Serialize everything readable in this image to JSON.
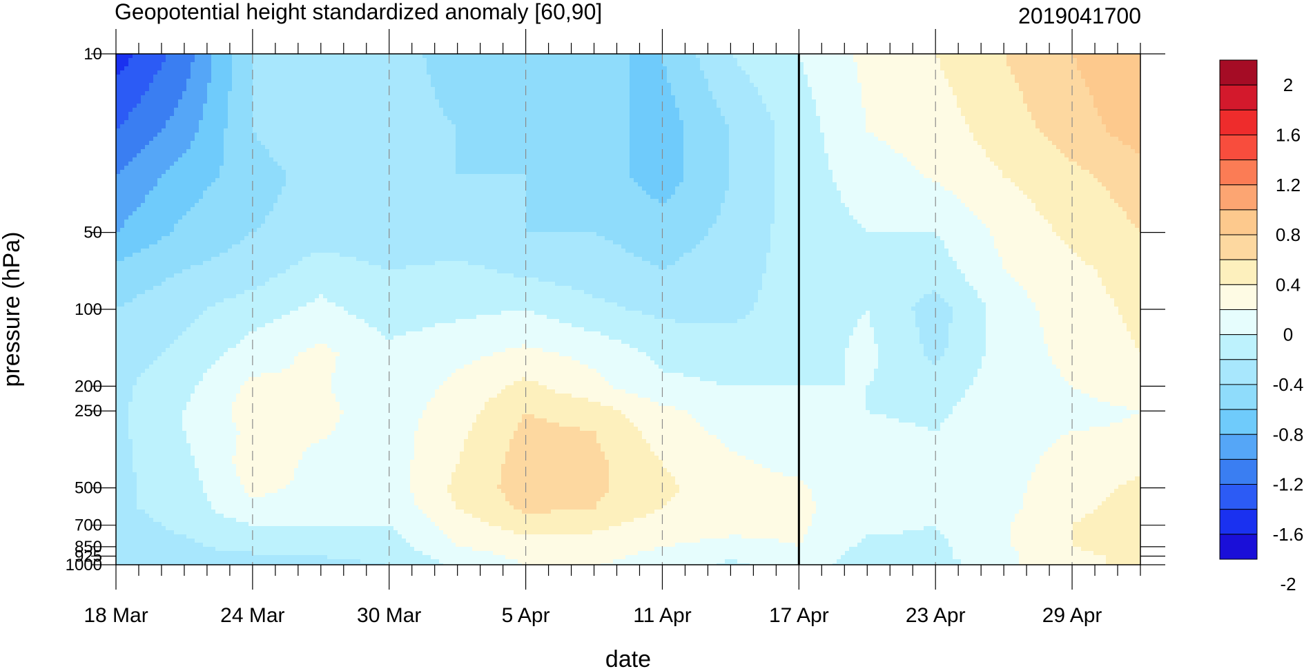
{
  "chart_data": {
    "type": "contour",
    "title": "Geopotential height standardized anomaly [60,90]",
    "subtitle": "2019041700",
    "xlabel": "date",
    "ylabel": "pressure (hPa)",
    "x_tick_labels": [
      "18 Mar",
      "24 Mar",
      "30 Mar",
      "5 Apr",
      "11 Apr",
      "17 Apr",
      "23 Apr",
      "29 Apr"
    ],
    "x_tick_days": [
      0,
      6,
      12,
      18,
      24,
      30,
      36,
      42
    ],
    "x_range_days": [
      0,
      45
    ],
    "y_scale": "log",
    "y_reversed": true,
    "y_range": [
      10,
      1000
    ],
    "y_tick_labels": [
      "10",
      "50",
      "100",
      "200",
      "250",
      "500",
      "700",
      "850",
      "925",
      "1000"
    ],
    "y_tick_values": [
      10,
      50,
      100,
      200,
      250,
      500,
      700,
      850,
      925,
      1000
    ],
    "reference_line_date": "17 Apr",
    "grid": "dashed vertical lines at labeled dates",
    "colorbar": {
      "orientation": "vertical",
      "placement": "right",
      "labels": [
        "2",
        "1.6",
        "1.2",
        "0.8",
        "0.4",
        "0",
        "-0.4",
        "-0.8",
        "-1.2",
        "-1.6",
        "-2"
      ],
      "levels": [
        -2,
        -1.8,
        -1.6,
        -1.4,
        -1.2,
        -1,
        -0.8,
        -0.6,
        -0.4,
        -0.2,
        0,
        0.2,
        0.4,
        0.6,
        0.8,
        1,
        1.2,
        1.4,
        1.6,
        1.8,
        2
      ],
      "colors": [
        "#1a0fd8",
        "#1a31f0",
        "#2c5bf5",
        "#3a7ef2",
        "#55a6f7",
        "#6fcbfb",
        "#8fdcfb",
        "#a8e7fd",
        "#bdf2fd",
        "#e6fdfd",
        "#fefbe4",
        "#fdf0bd",
        "#fdd8a0",
        "#fdc98d",
        "#fca572",
        "#fb7c55",
        "#f84d3d",
        "#ee2c2c",
        "#d3192c",
        "#a50c25"
      ]
    },
    "pressure_levels": [
      10,
      20,
      30,
      50,
      70,
      100,
      150,
      200,
      250,
      300,
      400,
      500,
      600,
      700,
      850,
      925,
      1000
    ],
    "days": [
      0,
      3,
      6,
      9,
      12,
      15,
      18,
      21,
      24,
      27,
      30,
      33,
      36,
      39,
      42,
      45
    ],
    "values": [
      [
        -1.7,
        -1.3,
        -0.6,
        -0.5,
        -0.5,
        -0.7,
        -0.7,
        -0.8,
        -0.8,
        -0.4,
        -0.2,
        0.05,
        0.2,
        0.4,
        0.6,
        0.8
      ],
      [
        -1.4,
        -1.1,
        -0.6,
        -0.4,
        -0.5,
        -0.6,
        -0.7,
        -0.7,
        -0.9,
        -0.6,
        -0.3,
        0.0,
        0.1,
        0.3,
        0.5,
        0.7
      ],
      [
        -1.2,
        -0.9,
        -0.7,
        -0.5,
        -0.5,
        -0.6,
        -0.6,
        -0.7,
        -0.9,
        -0.6,
        -0.3,
        -0.1,
        0.02,
        0.2,
        0.35,
        0.5
      ],
      [
        -1.0,
        -0.75,
        -0.6,
        -0.5,
        -0.55,
        -0.55,
        -0.6,
        -0.6,
        -0.7,
        -0.55,
        -0.3,
        -0.2,
        -0.2,
        0.05,
        0.25,
        0.4
      ],
      [
        -0.75,
        -0.6,
        -0.5,
        -0.3,
        -0.4,
        -0.35,
        -0.45,
        -0.5,
        -0.6,
        -0.5,
        -0.3,
        -0.25,
        -0.3,
        0.0,
        0.15,
        0.3
      ],
      [
        -0.6,
        -0.45,
        -0.3,
        -0.15,
        -0.3,
        -0.25,
        -0.2,
        -0.35,
        -0.45,
        -0.45,
        -0.3,
        -0.2,
        -0.5,
        -0.1,
        0.1,
        0.25
      ],
      [
        -0.5,
        -0.35,
        -0.1,
        0.05,
        -0.15,
        -0.05,
        0.05,
        -0.05,
        -0.25,
        -0.3,
        -0.3,
        -0.15,
        -0.45,
        -0.1,
        0.05,
        0.2
      ],
      [
        -0.45,
        -0.25,
        0.05,
        0.02,
        -0.15,
        0.05,
        0.25,
        0.05,
        -0.15,
        -0.2,
        -0.2,
        -0.2,
        -0.3,
        -0.1,
        0.0,
        0.1
      ],
      [
        -0.45,
        -0.2,
        0.1,
        0.05,
        -0.1,
        0.1,
        0.4,
        0.3,
        0.05,
        -0.1,
        -0.2,
        -0.2,
        -0.25,
        -0.05,
        -0.05,
        0.0
      ],
      [
        -0.45,
        -0.2,
        0.05,
        0.02,
        -0.1,
        0.15,
        0.45,
        0.4,
        0.1,
        -0.05,
        -0.1,
        -0.15,
        -0.2,
        -0.05,
        0.0,
        0.02
      ],
      [
        -0.45,
        -0.25,
        0.1,
        -0.05,
        -0.1,
        0.2,
        0.5,
        0.45,
        0.2,
        0.03,
        -0.05,
        -0.15,
        -0.15,
        -0.05,
        0.05,
        0.15
      ],
      [
        -0.45,
        -0.3,
        0.05,
        -0.05,
        -0.1,
        0.25,
        0.5,
        0.45,
        0.25,
        0.05,
        0.03,
        -0.15,
        -0.15,
        -0.05,
        0.1,
        0.25
      ],
      [
        -0.45,
        -0.3,
        -0.05,
        -0.1,
        -0.15,
        0.2,
        0.45,
        0.4,
        0.2,
        0.05,
        0.05,
        -0.15,
        -0.15,
        -0.05,
        0.15,
        0.3
      ],
      [
        -0.5,
        -0.35,
        -0.2,
        -0.2,
        -0.2,
        0.1,
        0.3,
        0.25,
        0.1,
        0.05,
        0.03,
        -0.15,
        -0.2,
        -0.02,
        0.2,
        0.3
      ],
      [
        -0.55,
        -0.45,
        -0.3,
        -0.3,
        -0.3,
        0.0,
        0.1,
        0.1,
        0.0,
        -0.05,
        0.0,
        -0.25,
        -0.25,
        -0.03,
        0.2,
        0.3
      ],
      [
        -0.6,
        -0.5,
        -0.45,
        -0.4,
        -0.35,
        -0.1,
        0.05,
        0.05,
        -0.05,
        -0.15,
        -0.05,
        -0.3,
        -0.25,
        -0.05,
        0.15,
        0.25
      ],
      [
        -0.6,
        -0.55,
        -0.5,
        -0.45,
        -0.4,
        -0.15,
        0.0,
        0.0,
        -0.05,
        -0.25,
        -0.1,
        -0.3,
        -0.3,
        -0.05,
        0.15,
        0.25
      ]
    ]
  }
}
